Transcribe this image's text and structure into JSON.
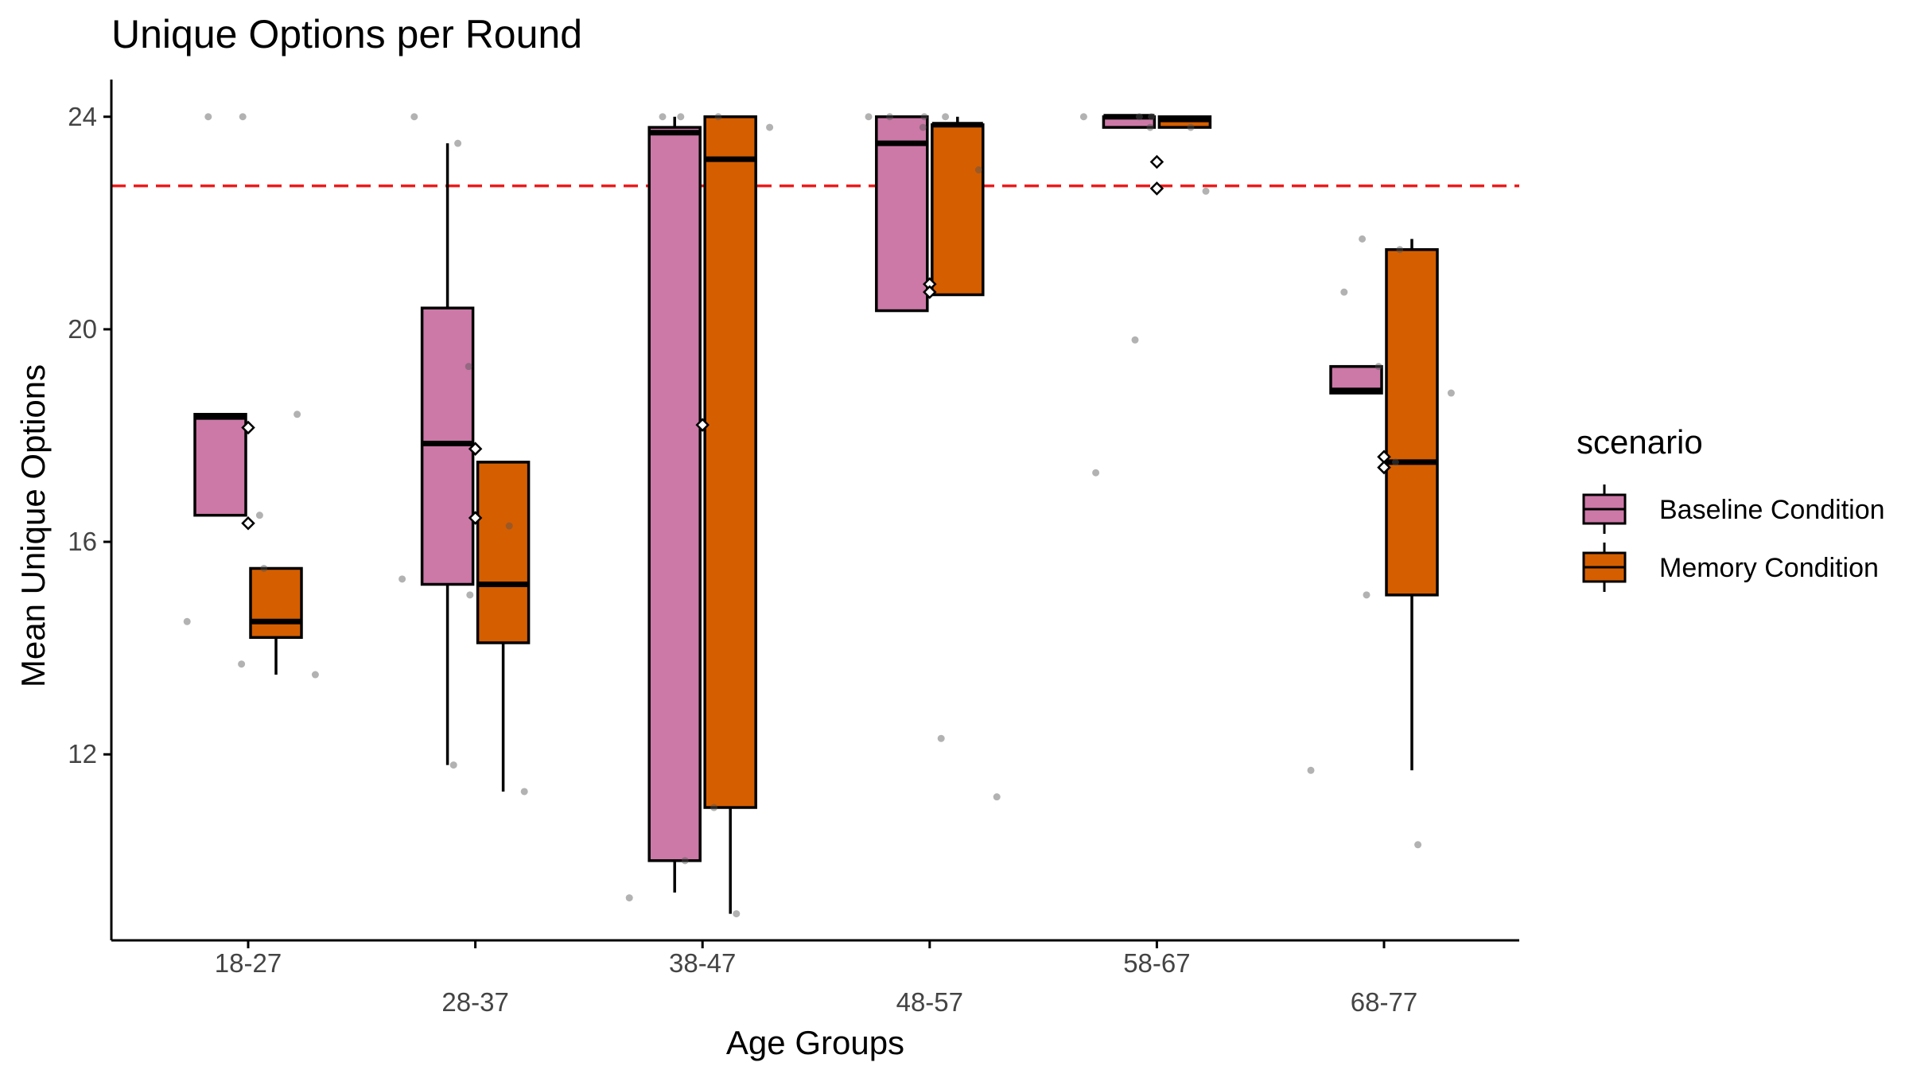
{
  "chart_data": {
    "type": "boxplot",
    "title": "Unique Options per Round",
    "xlabel": "Age Groups",
    "ylabel": "Mean Unique Options",
    "ylim": [
      8.5,
      24.7
    ],
    "yticks": [
      12,
      16,
      20,
      24
    ],
    "grid": false,
    "categories": [
      "18-27",
      "28-37",
      "38-47",
      "48-57",
      "58-67",
      "68-77"
    ],
    "reference_line": {
      "y": 22.7,
      "color": "#ee1c1c",
      "style": "dashed"
    },
    "legend": {
      "title": "scenario",
      "position": "right",
      "items": [
        {
          "label": "Baseline Condition",
          "color": "#cc79a7"
        },
        {
          "label": "Memory Condition",
          "color": "#d55e00"
        }
      ]
    },
    "series": [
      {
        "name": "Baseline Condition",
        "color": "#cc79a7",
        "boxes": [
          {
            "category": "18-27",
            "whisker_low": 16.5,
            "q1": 16.5,
            "median": 18.35,
            "q3": 18.4,
            "whisker_high": 18.4,
            "means": [
              18.15,
              16.35
            ]
          },
          {
            "category": "28-37",
            "whisker_low": 11.8,
            "q1": 15.2,
            "median": 17.85,
            "q3": 20.4,
            "whisker_high": 23.5,
            "means": [
              17.75,
              16.45
            ]
          },
          {
            "category": "38-47",
            "whisker_low": 9.4,
            "q1": 10.0,
            "median": 23.7,
            "q3": 23.8,
            "whisker_high": 24.0,
            "means": [
              18.2
            ]
          },
          {
            "category": "48-57",
            "whisker_low": 20.35,
            "q1": 20.35,
            "median": 23.5,
            "q3": 24.0,
            "whisker_high": 24.0,
            "means": [
              20.85,
              20.7
            ]
          },
          {
            "category": "58-67",
            "whisker_low": 23.8,
            "q1": 23.8,
            "median": 24.0,
            "q3": 24.0,
            "whisker_high": 24.0,
            "means": [
              23.15,
              22.65
            ]
          },
          {
            "category": "68-77",
            "whisker_low": 18.8,
            "q1": 18.8,
            "median": 18.85,
            "q3": 19.3,
            "whisker_high": 19.3,
            "means": [
              17.6,
              17.4
            ]
          }
        ],
        "points": [
          [
            0,
            14.5
          ],
          [
            0,
            13.7
          ],
          [
            0,
            24.0
          ],
          [
            0,
            16.5
          ],
          [
            1,
            15.3
          ],
          [
            1,
            11.8
          ],
          [
            1,
            24.0
          ],
          [
            1,
            19.3
          ],
          [
            2,
            24.0
          ],
          [
            2,
            11.0
          ],
          [
            2,
            9.3
          ],
          [
            2,
            24.0
          ],
          [
            3,
            24.0
          ],
          [
            3,
            23.8
          ],
          [
            3,
            24.0
          ],
          [
            3,
            12.3
          ],
          [
            4,
            24.0
          ],
          [
            4,
            19.8
          ],
          [
            4,
            17.3
          ],
          [
            4,
            23.8
          ],
          [
            5,
            20.7
          ],
          [
            5,
            17.5
          ],
          [
            5,
            11.7
          ],
          [
            5,
            21.7
          ]
        ]
      },
      {
        "name": "Memory Condition",
        "color": "#d55e00",
        "boxes": [
          {
            "category": "18-27",
            "whisker_low": 13.5,
            "q1": 14.2,
            "median": 14.5,
            "q3": 15.5,
            "whisker_high": 15.5,
            "means": []
          },
          {
            "category": "28-37",
            "whisker_low": 11.3,
            "q1": 14.1,
            "median": 15.2,
            "q3": 17.5,
            "whisker_high": 17.5,
            "means": []
          },
          {
            "category": "38-47",
            "whisker_low": 9.0,
            "q1": 11.0,
            "median": 23.2,
            "q3": 24.0,
            "whisker_high": 24.0,
            "means": []
          },
          {
            "category": "48-57",
            "whisker_low": 20.65,
            "q1": 20.65,
            "median": 23.85,
            "q3": 23.85,
            "whisker_high": 24.0,
            "means": []
          },
          {
            "category": "58-67",
            "whisker_low": 23.8,
            "q1": 23.8,
            "median": 23.95,
            "q3": 24.0,
            "whisker_high": 24.0,
            "means": []
          },
          {
            "category": "68-77",
            "whisker_low": 11.7,
            "q1": 15.0,
            "median": 17.5,
            "q3": 21.5,
            "whisker_high": 21.7,
            "means": []
          }
        ],
        "points": [
          [
            0,
            24.0
          ],
          [
            0,
            18.4
          ],
          [
            0,
            15.5
          ],
          [
            0,
            13.5
          ],
          [
            1,
            23.5
          ],
          [
            1,
            16.3
          ],
          [
            1,
            15.0
          ],
          [
            1,
            11.3
          ],
          [
            2,
            24.0
          ],
          [
            2,
            23.8
          ],
          [
            2,
            10.0
          ],
          [
            2,
            9.0
          ],
          [
            3,
            24.0
          ],
          [
            3,
            23.0
          ],
          [
            3,
            24.0
          ],
          [
            3,
            11.2
          ],
          [
            4,
            24.0
          ],
          [
            4,
            23.8
          ],
          [
            4,
            24.0
          ],
          [
            4,
            22.6
          ],
          [
            5,
            21.5
          ],
          [
            5,
            18.8
          ],
          [
            5,
            15.0
          ],
          [
            5,
            10.3
          ],
          [
            5,
            19.3
          ]
        ]
      }
    ]
  }
}
